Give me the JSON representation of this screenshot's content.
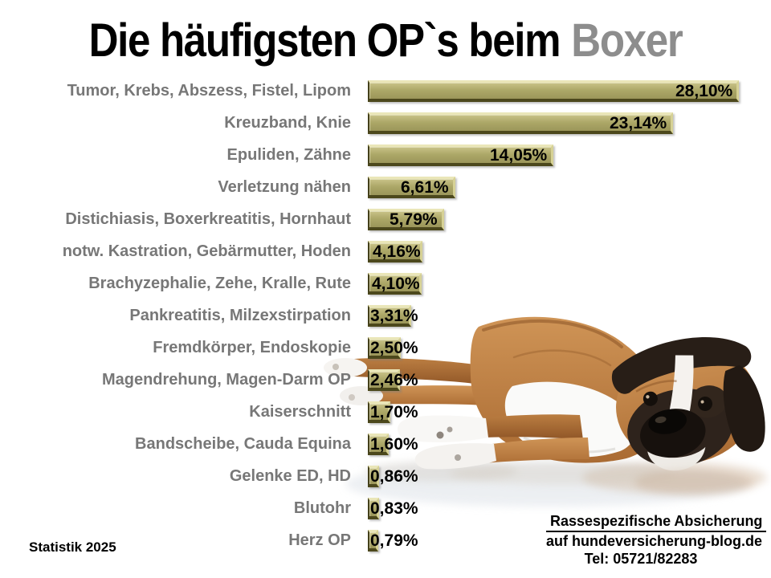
{
  "title": {
    "black": "Die häufigsten OP`s beim",
    "gray": "Boxer"
  },
  "chart_data": {
    "type": "bar",
    "orientation": "horizontal",
    "title": "Die häufigsten OP`s beim Boxer",
    "categories": [
      "Tumor, Krebs, Abszess, Fistel, Lipom",
      "Kreuzband, Knie",
      "Epuliden, Zähne",
      "Verletzung nähen",
      "Distichiasis, Boxerkreatitis, Hornhaut",
      "notw. Kastration, Gebärmutter, Hoden",
      "Brachyzephalie, Zehe, Kralle, Rute",
      "Pankreatitis, Milzexstirpation",
      "Fremdkörper, Endoskopie",
      "Magendrehung, Magen-Darm OP",
      "Kaiserschnitt",
      "Bandscheibe, Cauda Equina",
      "Gelenke ED, HD",
      "Blutohr",
      "Herz OP"
    ],
    "values": [
      28.1,
      23.14,
      14.05,
      6.61,
      5.79,
      4.16,
      4.1,
      3.31,
      2.5,
      2.46,
      1.7,
      1.6,
      0.86,
      0.83,
      0.79
    ],
    "value_labels": [
      "28,10%",
      "23,14%",
      "14,05%",
      "6,61%",
      "5,79%",
      "4,16%",
      "4,10%",
      "3,31%",
      "2,50%",
      "2,46%",
      "1,70%",
      "1,60%",
      "0,86%",
      "0,83%",
      "0,79%"
    ],
    "xlim": [
      0,
      28.5
    ],
    "grid": false,
    "legend": false,
    "bar_color": "#aca767",
    "category_label_color": "#777777",
    "value_label_color": "#000000"
  },
  "footer": {
    "stat_note": "Statistik 2025",
    "ad_line1": "Rassespezifische  Absicherung",
    "ad_line2": "auf hundeversicherung-blog.de",
    "ad_line3": "Tel: 05721/82283"
  }
}
